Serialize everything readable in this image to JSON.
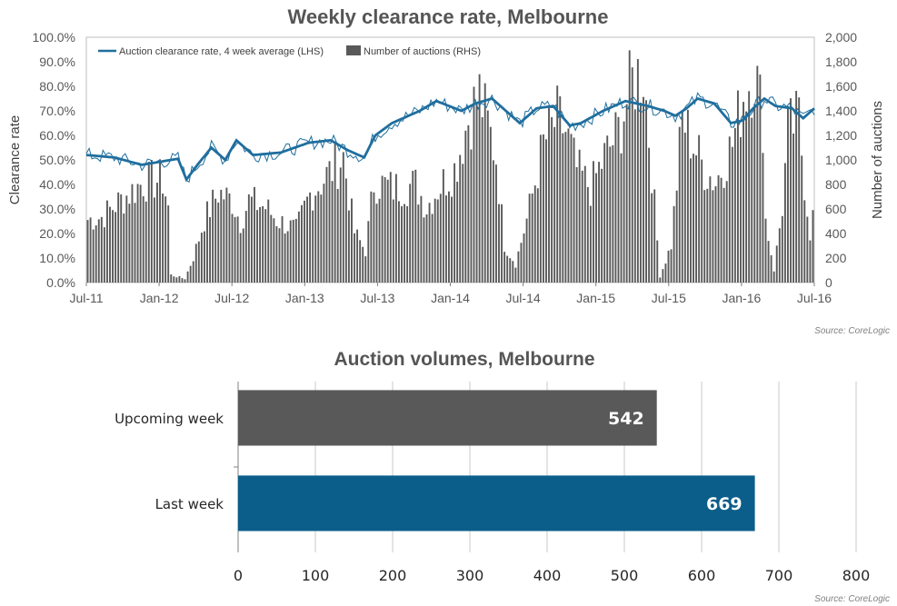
{
  "chart_data": [
    {
      "type": "bar+line",
      "title": "Weekly clearance rate, Melbourne",
      "ylabel_left": "Clearance rate",
      "ylabel_right": "Number of auctions",
      "yticks_left": [
        "0.0%",
        "10.0%",
        "20.0%",
        "30.0%",
        "40.0%",
        "50.0%",
        "60.0%",
        "70.0%",
        "80.0%",
        "90.0%",
        "100.0%"
      ],
      "yticks_right": [
        "0",
        "200",
        "400",
        "600",
        "800",
        "1,000",
        "1,200",
        "1,400",
        "1,600",
        "1,800",
        "2,000"
      ],
      "xticks": [
        "Jul-11",
        "Jan-12",
        "Jul-12",
        "Jan-13",
        "Jul-13",
        "Jan-14",
        "Jul-14",
        "Jan-15",
        "Jul-15",
        "Jan-16",
        "Jul-16"
      ],
      "ylim_left": [
        0,
        100
      ],
      "ylim_right": [
        0,
        2000
      ],
      "weeks": 262,
      "legend": [
        "Auction clearance rate, 4 week average (LHS)",
        "Number of auctions (RHS)"
      ],
      "source": "Source: CoreLogic",
      "colors": {
        "line": "#1F6E9E",
        "bars": "#595959"
      },
      "line_anchors": [
        [
          0,
          52
        ],
        [
          10,
          51
        ],
        [
          20,
          48
        ],
        [
          28,
          49.5
        ],
        [
          33,
          50.5
        ],
        [
          36,
          42
        ],
        [
          40,
          48
        ],
        [
          45,
          55
        ],
        [
          50,
          50
        ],
        [
          54,
          58
        ],
        [
          60,
          52
        ],
        [
          70,
          53
        ],
        [
          80,
          57
        ],
        [
          88,
          58
        ],
        [
          94,
          54
        ],
        [
          100,
          51
        ],
        [
          104,
          60
        ],
        [
          110,
          65
        ],
        [
          120,
          70
        ],
        [
          126,
          74
        ],
        [
          135,
          70
        ],
        [
          140,
          73
        ],
        [
          146,
          75
        ],
        [
          152,
          69
        ],
        [
          156,
          65
        ],
        [
          162,
          71
        ],
        [
          168,
          72
        ],
        [
          174,
          64
        ],
        [
          178,
          65
        ],
        [
          186,
          70
        ],
        [
          194,
          74
        ],
        [
          202,
          72
        ],
        [
          208,
          70
        ],
        [
          212,
          68
        ],
        [
          216,
          71
        ],
        [
          220,
          75
        ],
        [
          226,
          73
        ],
        [
          232,
          65
        ],
        [
          236,
          66
        ],
        [
          240,
          71
        ],
        [
          244,
          75
        ],
        [
          248,
          72
        ],
        [
          254,
          71
        ],
        [
          258,
          67
        ],
        [
          262,
          71
        ]
      ],
      "bar_anchors": [
        [
          0,
          500
        ],
        [
          5,
          520
        ],
        [
          10,
          620
        ],
        [
          20,
          800
        ],
        [
          27,
          820
        ],
        [
          29,
          600
        ],
        [
          30,
          60
        ],
        [
          35,
          30
        ],
        [
          38,
          200
        ],
        [
          42,
          500
        ],
        [
          47,
          720
        ],
        [
          52,
          650
        ],
        [
          55,
          480
        ],
        [
          58,
          650
        ],
        [
          64,
          600
        ],
        [
          68,
          500
        ],
        [
          75,
          420
        ],
        [
          80,
          700
        ],
        [
          88,
          900
        ],
        [
          92,
          1000
        ],
        [
          96,
          400
        ],
        [
          100,
          250
        ],
        [
          103,
          800
        ],
        [
          110,
          750
        ],
        [
          118,
          780
        ],
        [
          122,
          600
        ],
        [
          126,
          750
        ],
        [
          132,
          900
        ],
        [
          137,
          1300
        ],
        [
          141,
          1500
        ],
        [
          147,
          1000
        ],
        [
          150,
          300
        ],
        [
          154,
          150
        ],
        [
          158,
          500
        ],
        [
          164,
          1100
        ],
        [
          169,
          1300
        ],
        [
          172,
          1200
        ],
        [
          176,
          900
        ],
        [
          181,
          750
        ],
        [
          186,
          1000
        ],
        [
          191,
          1200
        ],
        [
          196,
          1600
        ],
        [
          200,
          1700
        ],
        [
          203,
          900
        ],
        [
          206,
          50
        ],
        [
          210,
          300
        ],
        [
          214,
          1300
        ],
        [
          218,
          1100
        ],
        [
          222,
          900
        ],
        [
          226,
          800
        ],
        [
          232,
          1100
        ],
        [
          236,
          1500
        ],
        [
          240,
          1700
        ],
        [
          243,
          1300
        ],
        [
          244,
          500
        ],
        [
          247,
          100
        ],
        [
          250,
          600
        ],
        [
          252,
          1200
        ],
        [
          256,
          1300
        ],
        [
          258,
          800
        ],
        [
          260,
          400
        ],
        [
          262,
          650
        ]
      ]
    },
    {
      "type": "bar",
      "orientation": "horizontal",
      "title": "Auction volumes, Melbourne",
      "categories": [
        "Upcoming week",
        "Last week"
      ],
      "values": [
        542,
        669
      ],
      "data_labels": [
        "542",
        "669"
      ],
      "colors": [
        "#595959",
        "#0B5E8A"
      ],
      "xlim": [
        0,
        800
      ],
      "xticks": [
        "0",
        "100",
        "200",
        "300",
        "400",
        "500",
        "600",
        "700",
        "800"
      ],
      "source": "Source: CoreLogic"
    }
  ]
}
